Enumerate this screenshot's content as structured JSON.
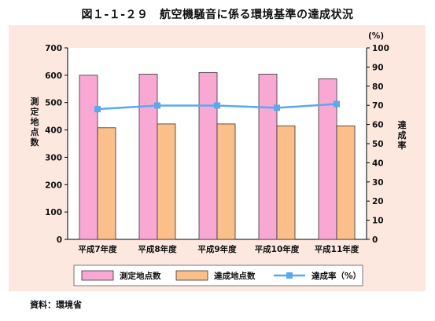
{
  "figure": {
    "title": "図１-１-２９　航空機騒音に係る環境基準の達成状況",
    "source": "資料：環境省"
  },
  "chart_data": {
    "type": "bar",
    "categories": [
      "平成7年度",
      "平成8年度",
      "平成9年度",
      "平成10年度",
      "平成11年度"
    ],
    "series": [
      {
        "name": "測定地点数",
        "kind": "bar",
        "axis": "left",
        "color": "#f9a8d4",
        "values": [
          600,
          604,
          610,
          604,
          587
        ]
      },
      {
        "name": "達成地点数",
        "kind": "bar",
        "axis": "left",
        "color": "#fbbf8a",
        "values": [
          408,
          422,
          422,
          415,
          415
        ]
      },
      {
        "name": "達成率（%）",
        "kind": "line",
        "axis": "right",
        "color": "#5ba8f0",
        "values": [
          68.0,
          69.9,
          69.9,
          68.7,
          70.7
        ]
      }
    ],
    "ylabel_left": "測定地点数",
    "ylabel_right": "達成率",
    "y_unit_right": "(%)",
    "ylim_left": [
      0,
      700
    ],
    "yticks_left": [
      0,
      100,
      200,
      300,
      400,
      500,
      600,
      700
    ],
    "ylim_right": [
      0,
      100
    ],
    "yticks_right": [
      0,
      10,
      20,
      30,
      40,
      50,
      60,
      70,
      80,
      90,
      100
    ],
    "grid": false,
    "legend_position": "bottom"
  }
}
